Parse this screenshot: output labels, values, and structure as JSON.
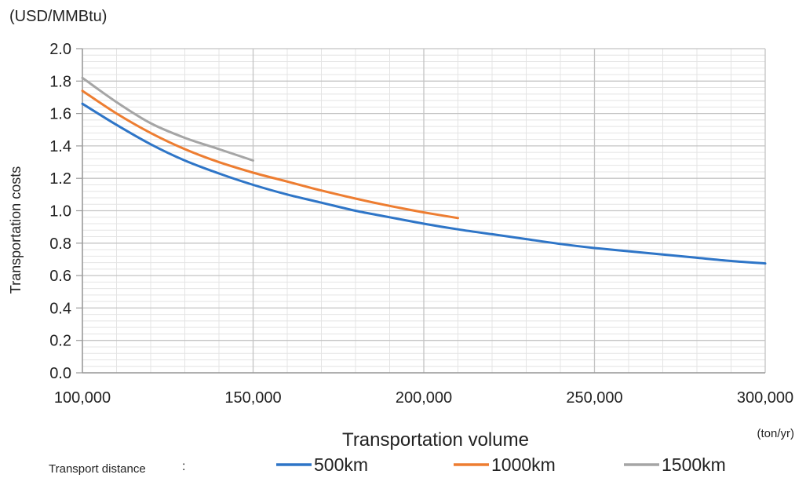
{
  "chart_data": {
    "type": "line",
    "unit_label": "(USD/MMBtu)",
    "ylabel": "Transportation costs",
    "xlabel": "Transportation volume",
    "x_unit_label": "(ton/yr)",
    "legend_title": "Transport distance",
    "legend_separator": ":",
    "legend_position": "bottom",
    "xlim": [
      100000,
      300000
    ],
    "ylim": [
      0,
      2.0
    ],
    "x_ticks": [
      "100,000",
      "150,000",
      "200,000",
      "250,000",
      "300,000"
    ],
    "y_ticks": [
      "0.0",
      "0.2",
      "0.4",
      "0.6",
      "0.8",
      "1.0",
      "1.2",
      "1.4",
      "1.6",
      "1.8",
      "2.0"
    ],
    "grid": true,
    "series": [
      {
        "name": "500km",
        "color": "#2e75c7",
        "x": [
          100000,
          110000,
          120000,
          130000,
          140000,
          150000,
          160000,
          170000,
          180000,
          190000,
          200000,
          210000,
          220000,
          230000,
          240000,
          250000,
          260000,
          270000,
          280000,
          290000,
          300000
        ],
        "y": [
          1.66,
          1.53,
          1.41,
          1.31,
          1.23,
          1.16,
          1.1,
          1.05,
          1.0,
          0.96,
          0.92,
          0.885,
          0.855,
          0.825,
          0.795,
          0.77,
          0.75,
          0.73,
          0.71,
          0.69,
          0.675
        ]
      },
      {
        "name": "1000km",
        "color": "#ed7d31",
        "x": [
          100000,
          110000,
          120000,
          130000,
          140000,
          150000,
          160000,
          170000,
          180000,
          190000,
          200000,
          210000
        ],
        "y": [
          1.74,
          1.6,
          1.48,
          1.38,
          1.3,
          1.235,
          1.18,
          1.125,
          1.075,
          1.03,
          0.99,
          0.955
        ]
      },
      {
        "name": "1500km",
        "color": "#a5a5a5",
        "x": [
          100000,
          110000,
          120000,
          130000,
          140000,
          150000
        ],
        "y": [
          1.82,
          1.67,
          1.54,
          1.45,
          1.38,
          1.31
        ]
      }
    ]
  }
}
